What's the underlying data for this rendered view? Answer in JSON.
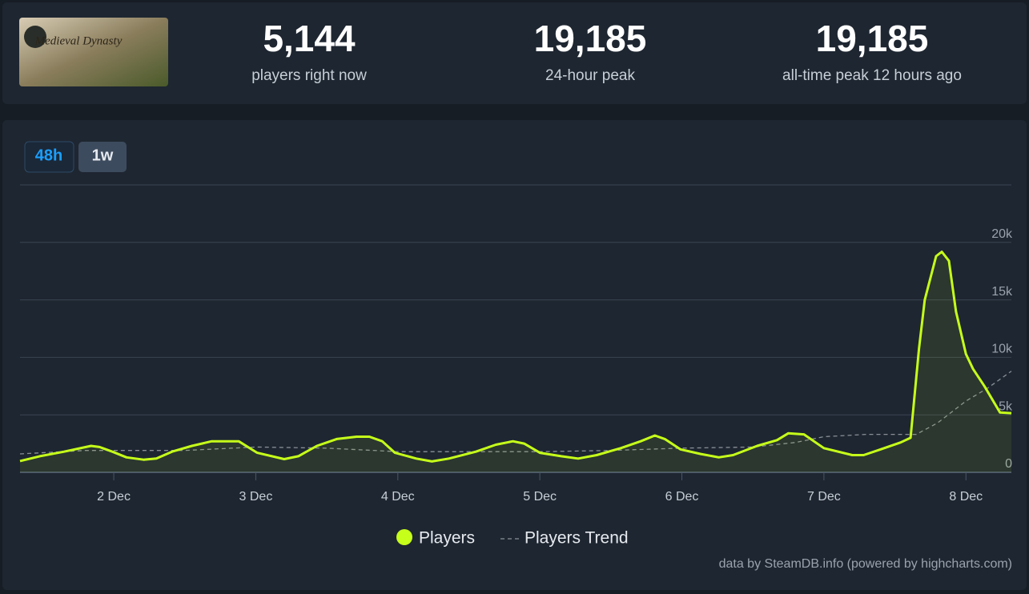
{
  "header": {
    "image_text": "Medieval Dynasty",
    "stats": [
      {
        "value": "5,144",
        "label": "players right now"
      },
      {
        "value": "19,185",
        "label": "24-hour peak"
      },
      {
        "value": "19,185",
        "label": "all-time peak 12 hours ago"
      }
    ]
  },
  "buttons": [
    "48h",
    "1w"
  ],
  "chart_data": {
    "type": "line",
    "xlim": [
      1.34,
      8.32
    ],
    "xticks": [
      {
        "value": 2,
        "label": "2 Dec"
      },
      {
        "value": 3,
        "label": "3 Dec"
      },
      {
        "value": 4,
        "label": "4 Dec"
      },
      {
        "value": 5,
        "label": "5 Dec"
      },
      {
        "value": 6,
        "label": "6 Dec"
      },
      {
        "value": 7,
        "label": "7 Dec"
      },
      {
        "value": 8,
        "label": "8 Dec"
      }
    ],
    "ylim": [
      0,
      25000
    ],
    "yticks": [
      0,
      {
        "value": 5000,
        "label": "5k"
      },
      {
        "value": 10000,
        "label": "10k"
      },
      {
        "value": 15000,
        "label": "15k"
      },
      {
        "value": 20000,
        "label": "20k"
      }
    ],
    "grid": true,
    "series": [
      {
        "name": "Players",
        "color": "#c6ff1a",
        "x": [
          1.34,
          1.48,
          1.65,
          1.84,
          1.9,
          1.99,
          2.09,
          2.21,
          2.3,
          2.41,
          2.55,
          2.69,
          2.88,
          3.01,
          3.2,
          3.3,
          3.43,
          3.57,
          3.71,
          3.8,
          3.89,
          3.98,
          4.13,
          4.24,
          4.36,
          4.55,
          4.69,
          4.81,
          4.89,
          5.0,
          5.15,
          5.27,
          5.4,
          5.57,
          5.71,
          5.81,
          5.88,
          5.99,
          6.13,
          6.26,
          6.36,
          6.53,
          6.67,
          6.75,
          6.86,
          7.0,
          7.2,
          7.28,
          7.4,
          7.54,
          7.61,
          7.67,
          7.71,
          7.79,
          7.83,
          7.88,
          7.93,
          8.0,
          8.05,
          8.13,
          8.24,
          8.32
        ],
        "values": [
          980,
          1400,
          1800,
          2300,
          2200,
          1800,
          1300,
          1100,
          1200,
          1800,
          2300,
          2700,
          2700,
          1700,
          1150,
          1400,
          2300,
          2900,
          3100,
          3100,
          2700,
          1700,
          1200,
          950,
          1200,
          1800,
          2400,
          2700,
          2500,
          1700,
          1400,
          1200,
          1500,
          2100,
          2700,
          3200,
          2900,
          2000,
          1600,
          1300,
          1500,
          2300,
          2800,
          3400,
          3300,
          2100,
          1500,
          1500,
          2000,
          2600,
          3000,
          10800,
          15000,
          18800,
          19185,
          18400,
          14000,
          10300,
          9000,
          7500,
          5200,
          5144
        ]
      },
      {
        "name": "Players Trend",
        "color": "#8a8f96",
        "x": [
          1.34,
          1.8,
          2.5,
          3.0,
          3.5,
          4.0,
          4.5,
          5.0,
          5.5,
          6.0,
          6.5,
          6.8,
          7.0,
          7.3,
          7.65,
          7.8,
          8.0,
          8.15,
          8.32
        ],
        "values": [
          1600,
          1900,
          1900,
          2200,
          2100,
          1800,
          1800,
          1800,
          1900,
          2100,
          2200,
          2600,
          3100,
          3300,
          3300,
          4300,
          6200,
          7300,
          8800
        ]
      }
    ],
    "credits": "data by SteamDB.info (powered by highcharts.com)"
  }
}
